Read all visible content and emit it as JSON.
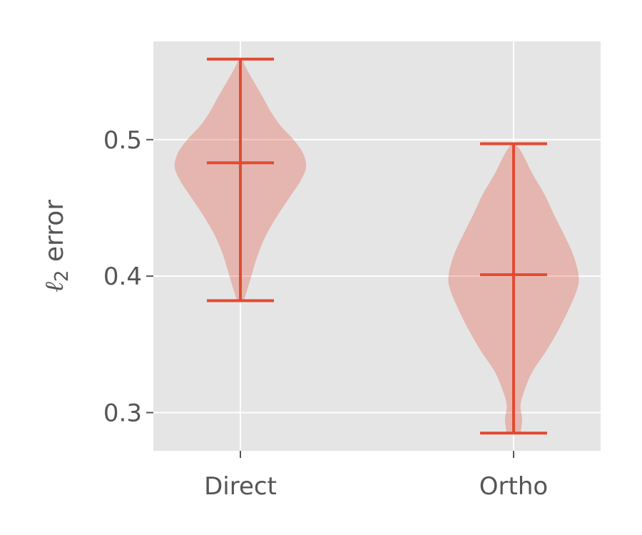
{
  "chart_data": {
    "type": "violin",
    "title": "",
    "xlabel": "",
    "ylabel": {
      "symbol": "ℓ",
      "subscript": "2",
      "text": " error"
    },
    "categories": [
      "Direct",
      "Ortho"
    ],
    "yticks": [
      "0.3",
      "0.4",
      "0.5"
    ],
    "ylim": [
      0.272,
      0.572
    ],
    "grid": true,
    "colors": {
      "background": "#e5e5e5",
      "grid": "#ffffff",
      "violin_fill": "#e24a33",
      "violin_alpha": 0.3,
      "lines": "#e24a33",
      "text": "#555555"
    },
    "violins": [
      {
        "name": "Direct",
        "min": 0.382,
        "max": 0.559,
        "median": 0.483,
        "profile": [
          [
            0.382,
            0.01
          ],
          [
            0.39,
            0.02
          ],
          [
            0.4,
            0.032
          ],
          [
            0.415,
            0.05
          ],
          [
            0.43,
            0.075
          ],
          [
            0.445,
            0.11
          ],
          [
            0.46,
            0.15
          ],
          [
            0.47,
            0.176
          ],
          [
            0.48,
            0.192
          ],
          [
            0.49,
            0.183
          ],
          [
            0.5,
            0.155
          ],
          [
            0.51,
            0.118
          ],
          [
            0.52,
            0.09
          ],
          [
            0.53,
            0.068
          ],
          [
            0.54,
            0.045
          ],
          [
            0.55,
            0.022
          ],
          [
            0.559,
            0.004
          ]
        ]
      },
      {
        "name": "Ortho",
        "min": 0.285,
        "max": 0.497,
        "median": 0.401,
        "profile": [
          [
            0.285,
            0.02
          ],
          [
            0.295,
            0.025
          ],
          [
            0.305,
            0.02
          ],
          [
            0.315,
            0.03
          ],
          [
            0.33,
            0.055
          ],
          [
            0.345,
            0.095
          ],
          [
            0.36,
            0.13
          ],
          [
            0.375,
            0.16
          ],
          [
            0.39,
            0.185
          ],
          [
            0.4,
            0.19
          ],
          [
            0.415,
            0.175
          ],
          [
            0.43,
            0.148
          ],
          [
            0.445,
            0.118
          ],
          [
            0.46,
            0.09
          ],
          [
            0.475,
            0.055
          ],
          [
            0.49,
            0.025
          ],
          [
            0.497,
            0.005
          ]
        ]
      }
    ]
  }
}
